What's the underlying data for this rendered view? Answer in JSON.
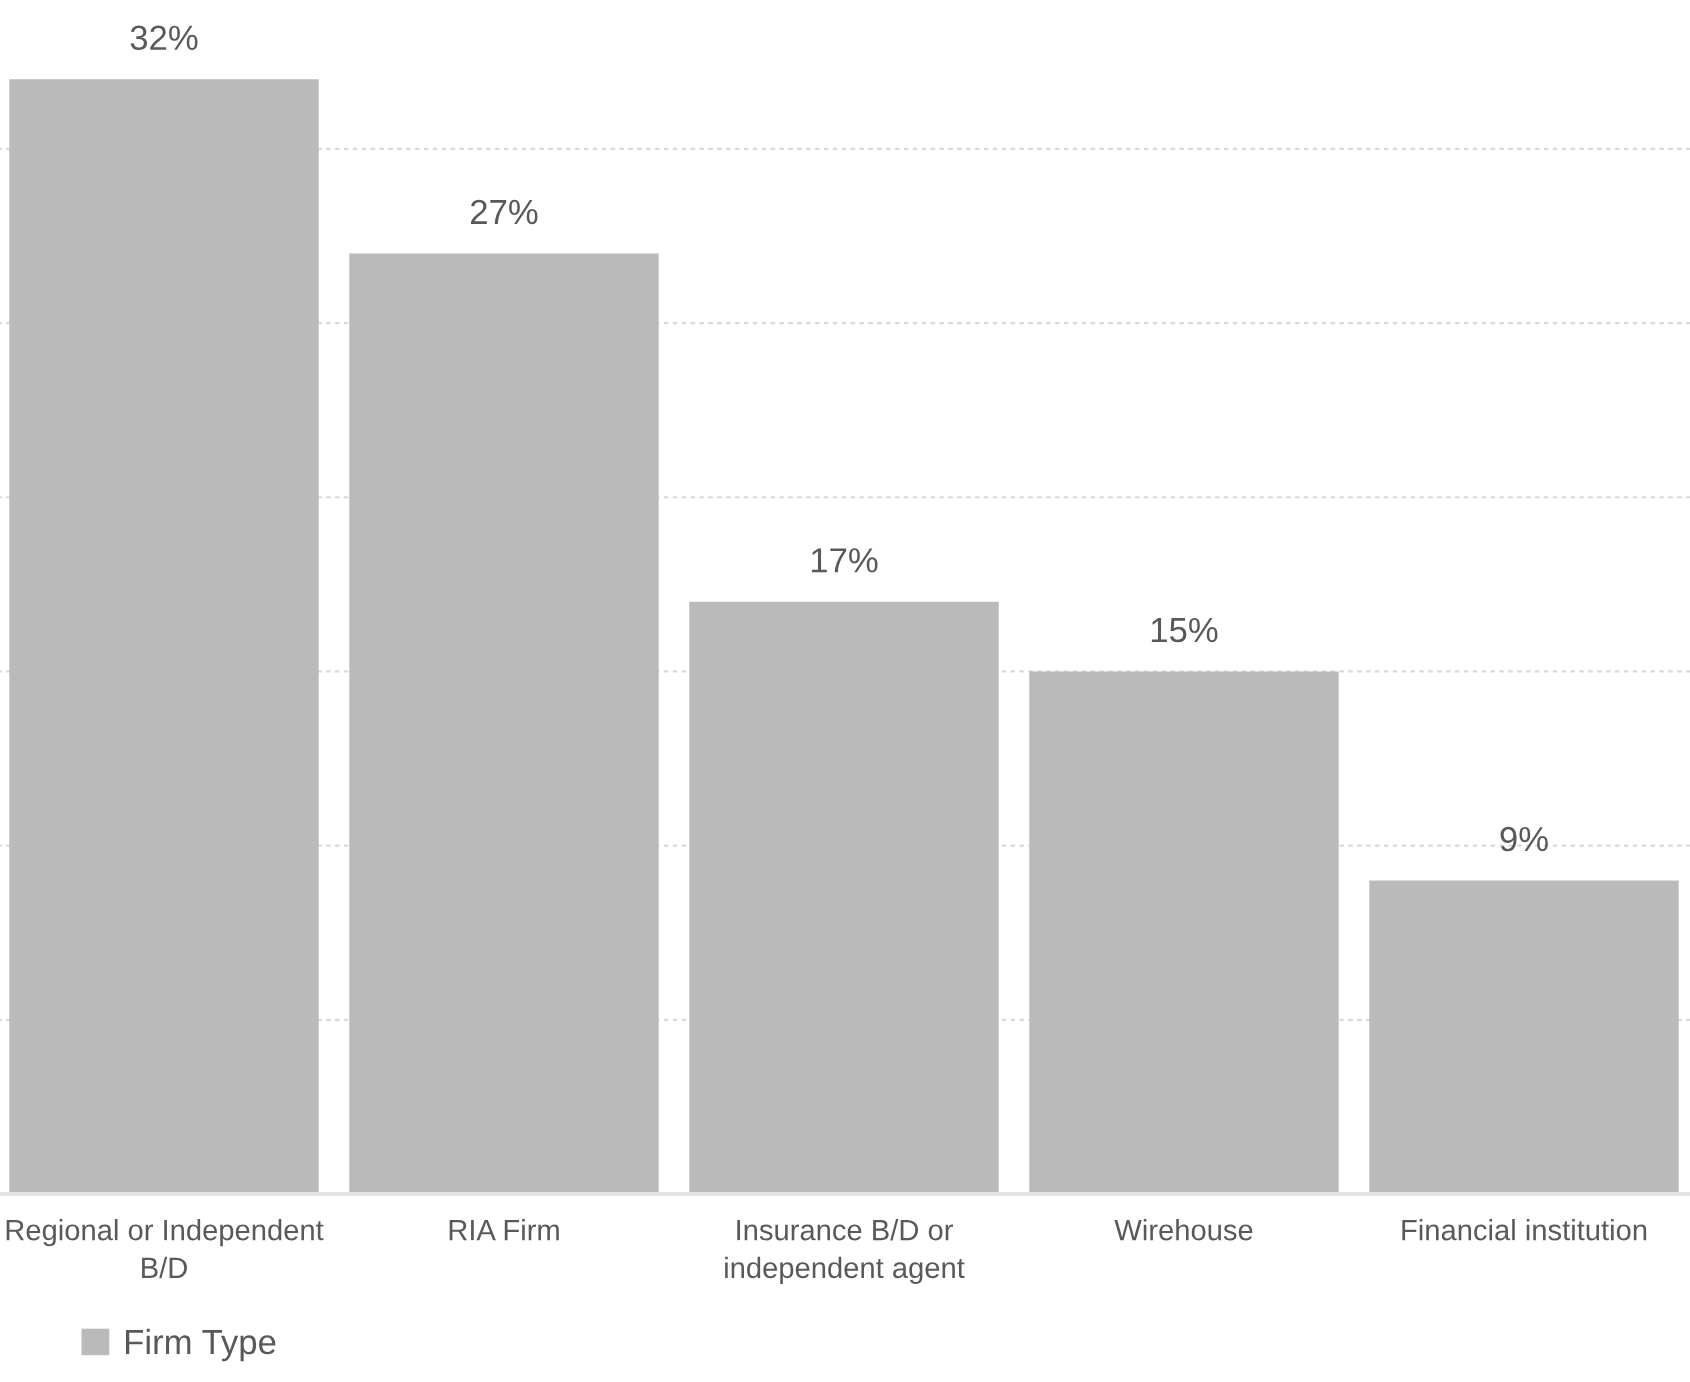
{
  "chart_data": {
    "type": "bar",
    "categories": [
      "Regional or Independent B/D",
      "RIA Firm",
      "Insurance B/D or independent agent",
      "Wirehouse",
      "Financial institution"
    ],
    "series": [
      {
        "name": "Firm Type",
        "color": "#bababa",
        "values": [
          32,
          27,
          17,
          15,
          9
        ],
        "value_labels": [
          "32%",
          "27%",
          "17%",
          "15%",
          "9%"
        ]
      }
    ],
    "yticks": [
      {
        "value": 5,
        "label": null
      },
      {
        "value": 10,
        "label": null
      },
      {
        "value": 15,
        "label": null
      },
      {
        "value": 20,
        "label": null
      },
      {
        "value": 25,
        "label": null
      },
      {
        "value": 30,
        "label": null
      }
    ],
    "grid": "y",
    "legend": "bottom left",
    "tick_labels": "x"
  }
}
